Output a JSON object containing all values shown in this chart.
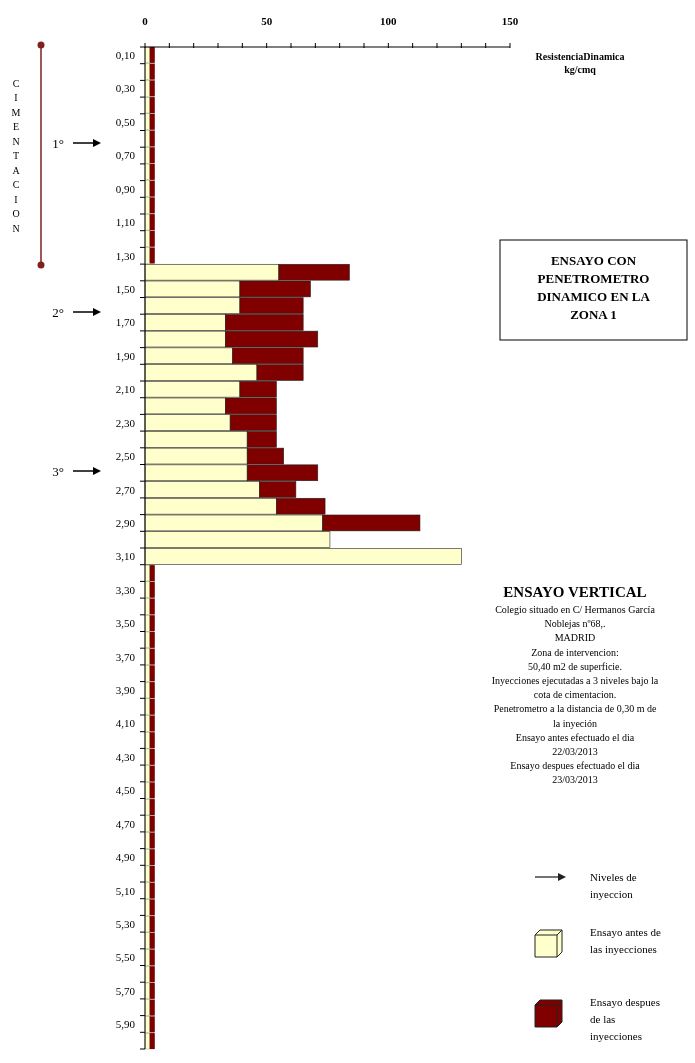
{
  "chart_data": {
    "type": "bar",
    "orientation": "horizontal",
    "stacked": true,
    "title": "ENSAYO CON PENETROMETRO DINAMICO EN LA ZONA 1",
    "subtitle": "ENSAYO VERTICAL",
    "xlabel": "ResistenciaDinamica kg/cmq",
    "categories": [
      "0,10",
      null,
      "0,30",
      null,
      "0,50",
      null,
      "0,70",
      null,
      "0,90",
      null,
      "1,10",
      null,
      "1,30",
      null,
      "1,50",
      null,
      "1,70",
      null,
      "1,90",
      null,
      "2,10",
      null,
      "2,30",
      null,
      "2,50",
      null,
      "2,70",
      null,
      "2,90",
      null,
      "3,10",
      null,
      "3,30",
      null,
      "3,50",
      null,
      "3,70",
      null,
      "3,90",
      null,
      "4,10",
      null,
      "4,30",
      null,
      "4,50",
      null,
      "4,70",
      null,
      "4,90",
      null,
      "5,10",
      null,
      "5,30",
      null,
      "5,50",
      null,
      "5,70",
      null,
      "5,90",
      null
    ],
    "series": [
      {
        "name": "Ensayo antes de las inyecciones",
        "color": "#ffffcc",
        "values": [
          2,
          2,
          2,
          2,
          2,
          2,
          2,
          2,
          2,
          2,
          2,
          2,
          2,
          55,
          39,
          39,
          33,
          33,
          36,
          46,
          39,
          33,
          35,
          42,
          42,
          42,
          47,
          54,
          73,
          76,
          130,
          2,
          2,
          2,
          2,
          2,
          2,
          2,
          2,
          2,
          2,
          2,
          2,
          2,
          2,
          2,
          2,
          2,
          2,
          2,
          2,
          2,
          2,
          2,
          2,
          2,
          2,
          2,
          2,
          2
        ]
      },
      {
        "name": "Ensayo despues de las inyecciones",
        "color": "#800000",
        "values": [
          2,
          2,
          2,
          2,
          2,
          2,
          2,
          2,
          2,
          2,
          2,
          2,
          2,
          29,
          29,
          26,
          32,
          38,
          29,
          19,
          15,
          21,
          19,
          12,
          15,
          29,
          15,
          20,
          40,
          0,
          0,
          2,
          2,
          2,
          2,
          2,
          2,
          2,
          2,
          2,
          2,
          2,
          2,
          2,
          2,
          2,
          2,
          2,
          2,
          2,
          2,
          2,
          2,
          2,
          2,
          2,
          2,
          2,
          2,
          2
        ]
      }
    ],
    "xlim": [
      0,
      150
    ],
    "xticks": [
      0,
      {
        "value": 10,
        "label": null
      },
      {
        "value": 20,
        "label": null
      },
      {
        "value": 30,
        "label": null
      },
      {
        "value": 40,
        "label": null
      },
      50,
      {
        "value": 60,
        "label": null
      },
      {
        "value": 70,
        "label": null
      },
      {
        "value": 80,
        "label": null
      },
      {
        "value": 90,
        "label": null
      },
      100,
      {
        "value": 110,
        "label": null
      },
      {
        "value": 120,
        "label": null
      },
      {
        "value": 130,
        "label": null
      },
      {
        "value": 140,
        "label": null
      },
      150
    ],
    "annotations": [
      "1°",
      "2°",
      "3°",
      "CIMENTACION",
      "Colegio situado en  C/ Hermanos García",
      "Noblejas nº68,.",
      "MADRID",
      "Zona de intervencion:",
      "50,40 m2 de superficie.",
      "Inyecciones ejecutadas a  3 niveles bajo la",
      "cota de cimentacion.",
      "Penetrometro  a la distancia de 0,30 m de",
      "la inyeción",
      "Ensayo antes efectuado el dia",
      "22/03/2013",
      "Ensayo despues efectuado el dia",
      "23/03/2013",
      "Niveles de inyeccion"
    ],
    "legend": "bottom right"
  }
}
